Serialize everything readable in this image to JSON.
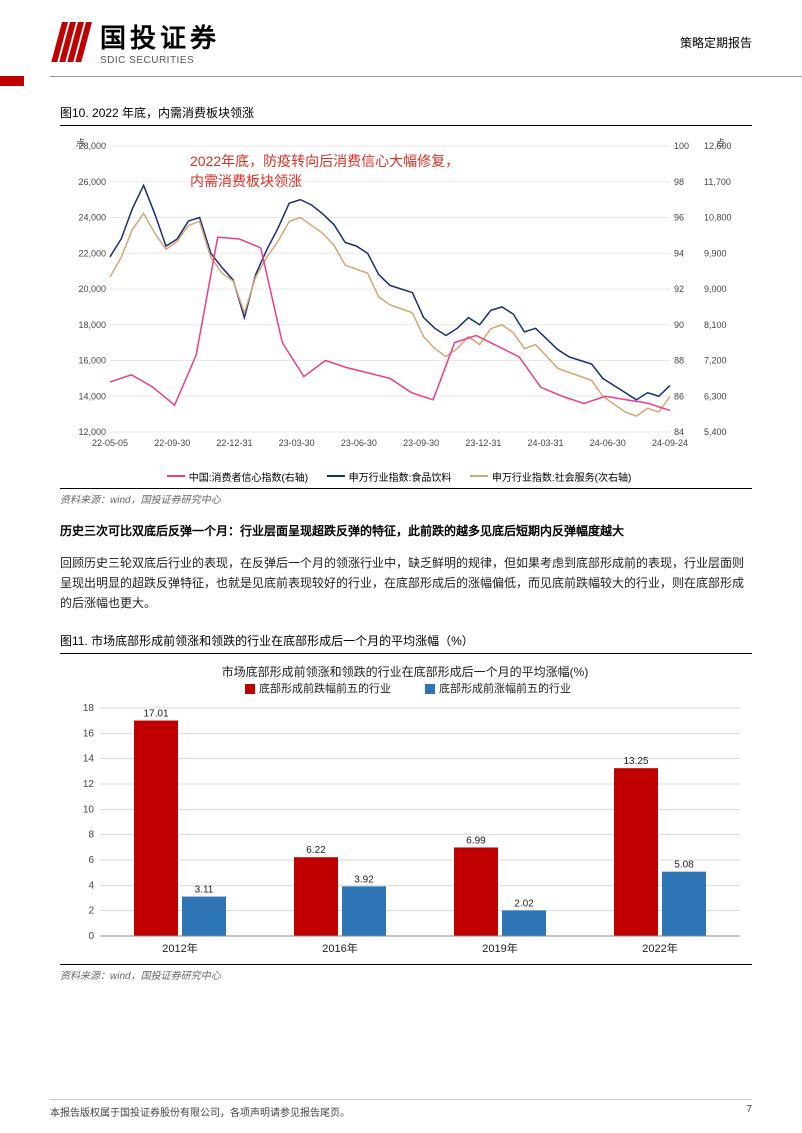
{
  "header": {
    "logo_cn": "国投证券",
    "logo_en": "SDIC SECURITIES",
    "top_right": "策略定期报告"
  },
  "fig10": {
    "title": "图10. 2022 年底，内需消费板块领涨",
    "annotation_l1": "2022年底，防疫转向后消费信心大幅修复，",
    "annotation_l2": "内需消费板块领涨",
    "y1_label": "点",
    "y2_label": "点",
    "y1_min": 12000,
    "y1_max": 28000,
    "y1_step": 2000,
    "y2_min": 84,
    "y2_max": 100,
    "y2_step": 2,
    "y3_min": 5400,
    "y3_max": 12600,
    "y3_step": 900,
    "x_ticks": [
      "22-05-05",
      "22-09-30",
      "22-12-31",
      "23-03-30",
      "23-06-30",
      "23-09-30",
      "23-12-31",
      "24-03-31",
      "24-06-30",
      "24-09-24"
    ],
    "series": {
      "consumer": {
        "label": "中国:消费者信心指数(右轴)",
        "color": "#e83e8c",
        "data": [
          86.8,
          87.2,
          86.5,
          85.5,
          88.3,
          94.9,
          94.8,
          94.3,
          89.0,
          87.1,
          88.0,
          87.6,
          87.3,
          87.0,
          86.2,
          85.8,
          89.0,
          89.4,
          88.8,
          88.2,
          86.5,
          86.0,
          85.6,
          86.0,
          85.8,
          85.6,
          85.2
        ]
      },
      "food": {
        "label": "申万行业指数:食品饮料",
        "color": "#1a2e6f",
        "data": [
          21800,
          22800,
          24500,
          25800,
          24200,
          22400,
          22800,
          23800,
          24000,
          22000,
          21200,
          20500,
          18400,
          20800,
          22200,
          23400,
          24800,
          25000,
          24700,
          24200,
          23600,
          22600,
          22400,
          22000,
          20800,
          20200,
          20000,
          19800,
          18400,
          17800,
          17400,
          17800,
          18400,
          18000,
          18800,
          19000,
          18600,
          17600,
          17800,
          17200,
          16600,
          16200,
          16000,
          15800,
          15000,
          14600,
          14200,
          13800,
          14200,
          14000,
          14600
        ]
      },
      "social": {
        "label": "申万行业指数:社会服务(次右轴)",
        "color": "#d4a574",
        "data": [
          9300,
          9800,
          10500,
          10900,
          10400,
          10000,
          10200,
          10600,
          10700,
          9800,
          9400,
          9200,
          8400,
          9300,
          9800,
          10200,
          10700,
          10800,
          10600,
          10400,
          10100,
          9600,
          9500,
          9400,
          8800,
          8600,
          8500,
          8400,
          7800,
          7500,
          7300,
          7500,
          7800,
          7600,
          8000,
          8100,
          7900,
          7500,
          7600,
          7300,
          7000,
          6900,
          6800,
          6700,
          6300,
          6100,
          5900,
          5800,
          6000,
          5900,
          6300
        ]
      }
    },
    "source": "资料来源：wind，国投证券研究中心"
  },
  "section": {
    "title": "历史三次可比双底后反弹一个月：行业层面呈现超跌反弹的特征，此前跌的越多见底后短期内反弹幅度越大",
    "body": "回顾历史三轮双底后行业的表现，在反弹后一个月的领涨行业中，缺乏鲜明的规律，但如果考虑到底部形成前的表现，行业层面则呈现出明显的超跌反弹特征，也就是见底前表现较好的行业，在底部形成后的涨幅偏低，而见底前跌幅较大的行业，则在底部形成的后涨幅也更大。"
  },
  "fig11": {
    "title": "图11. 市场底部形成前领涨和领跌的行业在底部形成后一个月的平均涨幅（%）",
    "chart_title": "市场底部形成前领涨和领跌的行业在底部形成后一个月的平均涨幅(%)",
    "legend": {
      "s1": {
        "label": "底部形成前跌幅前五的行业",
        "color": "#c00000"
      },
      "s2": {
        "label": "底部形成前涨幅前五的行业",
        "color": "#2e75b6"
      }
    },
    "categories": [
      "2012年",
      "2016年",
      "2019年",
      "2022年"
    ],
    "s1_values": [
      17.01,
      6.22,
      6.99,
      13.25
    ],
    "s2_values": [
      3.11,
      3.92,
      2.02,
      5.08
    ],
    "y_min": 0,
    "y_max": 18,
    "y_step": 2,
    "grid_color": "#d9d9d9",
    "source": "资料来源：wind，国投证券研究中心"
  },
  "footer": {
    "text": "本报告版权属于国投证券股份有限公司，各项声明请参见报告尾页。",
    "page": "7"
  }
}
